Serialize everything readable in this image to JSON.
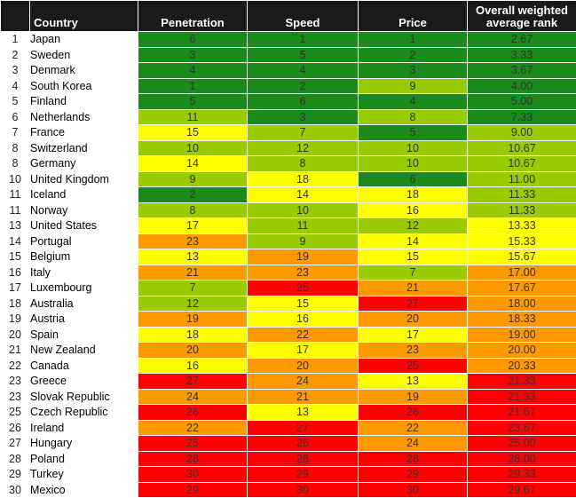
{
  "headers": {
    "num": "",
    "country": "Country",
    "penetration": "Penetration",
    "speed": "Speed",
    "price": "Price",
    "overall_line1": "Overall weighted",
    "overall_line2": "average rank"
  },
  "colors": {
    "dark_green": "#1a8a1a",
    "light_green": "#99cc00",
    "yellow": "#ffff00",
    "orange": "#ff9900",
    "red": "#ff0000"
  },
  "rows": [
    {
      "num": "1",
      "country": "Japan",
      "penetration": "6",
      "speed": "1",
      "price": "1",
      "overall": "2.67"
    },
    {
      "num": "2",
      "country": "Sweden",
      "penetration": "3",
      "speed": "5",
      "price": "2",
      "overall": "3.33"
    },
    {
      "num": "3",
      "country": "Denmark",
      "penetration": "4",
      "speed": "4",
      "price": "3",
      "overall": "3.67"
    },
    {
      "num": "4",
      "country": "South Korea",
      "penetration": "1",
      "speed": "2",
      "price": "9",
      "overall": "4.00"
    },
    {
      "num": "5",
      "country": "Finland",
      "penetration": "5",
      "speed": "6",
      "price": "4",
      "overall": "5.00"
    },
    {
      "num": "6",
      "country": "Netherlands",
      "penetration": "11",
      "speed": "3",
      "price": "8",
      "overall": "7.33"
    },
    {
      "num": "7",
      "country": "France",
      "penetration": "15",
      "speed": "7",
      "price": "5",
      "overall": "9.00"
    },
    {
      "num": "8",
      "country": "Switzerland",
      "penetration": "10",
      "speed": "12",
      "price": "10",
      "overall": "10.67"
    },
    {
      "num": "8",
      "country": "Germany",
      "penetration": "14",
      "speed": "8",
      "price": "10",
      "overall": "10.67"
    },
    {
      "num": "10",
      "country": "United Kingdom",
      "penetration": "9",
      "speed": "18",
      "price": "6",
      "overall": "11.00"
    },
    {
      "num": "11",
      "country": "Iceland",
      "penetration": "2",
      "speed": "14",
      "price": "18",
      "overall": "11.33"
    },
    {
      "num": "11",
      "country": "Norway",
      "penetration": "8",
      "speed": "10",
      "price": "16",
      "overall": "11.33"
    },
    {
      "num": "13",
      "country": "United States",
      "penetration": "17",
      "speed": "11",
      "price": "12",
      "overall": "13.33"
    },
    {
      "num": "14",
      "country": "Portugal",
      "penetration": "23",
      "speed": "9",
      "price": "14",
      "overall": "15.33"
    },
    {
      "num": "15",
      "country": "Belgium",
      "penetration": "13",
      "speed": "19",
      "price": "15",
      "overall": "15.67"
    },
    {
      "num": "16",
      "country": "Italy",
      "penetration": "21",
      "speed": "23",
      "price": "7",
      "overall": "17.00"
    },
    {
      "num": "17",
      "country": "Luxembourg",
      "penetration": "7",
      "speed": "25",
      "price": "21",
      "overall": "17.67"
    },
    {
      "num": "18",
      "country": "Australia",
      "penetration": "12",
      "speed": "15",
      "price": "27",
      "overall": "18.00"
    },
    {
      "num": "19",
      "country": "Austria",
      "penetration": "19",
      "speed": "16",
      "price": "20",
      "overall": "18.33"
    },
    {
      "num": "20",
      "country": "Spain",
      "penetration": "18",
      "speed": "22",
      "price": "17",
      "overall": "19.00"
    },
    {
      "num": "21",
      "country": "New Zealand",
      "penetration": "20",
      "speed": "17",
      "price": "23",
      "overall": "20.00"
    },
    {
      "num": "22",
      "country": "Canada",
      "penetration": "16",
      "speed": "20",
      "price": "25",
      "overall": "20.33"
    },
    {
      "num": "23",
      "country": "Greece",
      "penetration": "27",
      "speed": "24",
      "price": "13",
      "overall": "21.33"
    },
    {
      "num": "23",
      "country": "Slovak Republic",
      "penetration": "24",
      "speed": "21",
      "price": "19",
      "overall": "21.33"
    },
    {
      "num": "25",
      "country": "Czech Republic",
      "penetration": "26",
      "speed": "13",
      "price": "26",
      "overall": "21.67"
    },
    {
      "num": "26",
      "country": "Ireland",
      "penetration": "22",
      "speed": "27",
      "price": "22",
      "overall": "23.67"
    },
    {
      "num": "27",
      "country": "Hungary",
      "penetration": "25",
      "speed": "26",
      "price": "24",
      "overall": "25.00"
    },
    {
      "num": "28",
      "country": "Poland",
      "penetration": "28",
      "speed": "28",
      "price": "28",
      "overall": "28.00"
    },
    {
      "num": "29",
      "country": "Turkey",
      "penetration": "30",
      "speed": "29",
      "price": "29",
      "overall": "29.33"
    },
    {
      "num": "30",
      "country": "Mexico",
      "penetration": "29",
      "speed": "30",
      "price": "30",
      "overall": "29.67"
    }
  ]
}
